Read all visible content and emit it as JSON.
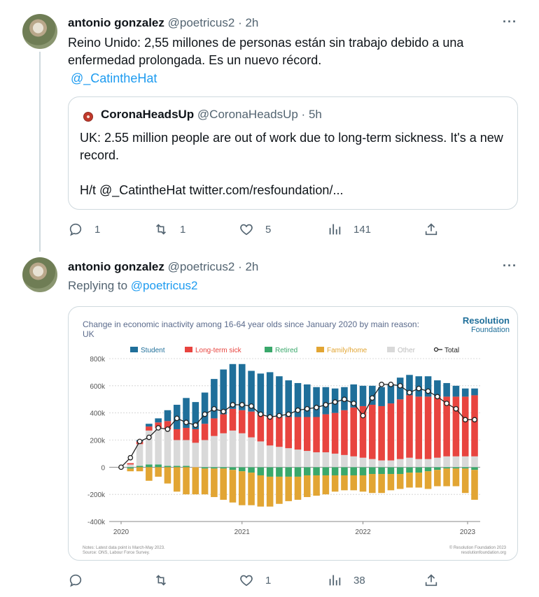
{
  "tweet1": {
    "name": "antonio gonzalez",
    "handle": "@poetricus2",
    "dot": "·",
    "time": "2h",
    "more": "···",
    "text": "Reino Unido: 2,55 millones de personas están sin trabajo debido a una enfermedad prolongada. Es un nuevo récord.",
    "mention": "@_CatintheHat",
    "quote": {
      "name": "CoronaHeadsUp",
      "handle": "@CoronaHeadsUp",
      "dot": "·",
      "time": "5h",
      "line1": "UK: 2.55 million people are out of work due to long-term sickness. It's a new record.",
      "line2": "H/t @_CatintheHat twitter.com/resfoundation/..."
    },
    "actions": {
      "replies": "1",
      "retweets": "1",
      "likes": "5",
      "views": "141"
    }
  },
  "tweet2": {
    "name": "antonio gonzalez",
    "handle": "@poetricus2",
    "dot": "·",
    "time": "2h",
    "more": "···",
    "replying_label": "Replying to ",
    "replying_handle": "@poetricus2",
    "actions": {
      "replies": "",
      "retweets": "",
      "likes": "1",
      "views": "38"
    }
  },
  "colors": {
    "student": "#1f6f9a",
    "longterm": "#e8443f",
    "retired": "#3aa86b",
    "family": "#e2a533",
    "other": "#d9d9d9",
    "total": "#222222",
    "accent": "#1d9bf0"
  },
  "chart_data": {
    "type": "bar",
    "title": "Change in economic inactivity among 16-64 year olds since January 2020 by main reason: UK",
    "brand": "Resolution",
    "brand_sub": "Foundation",
    "legend": [
      "Student",
      "Long-term sick",
      "Retired",
      "Family/home",
      "Other",
      "Total"
    ],
    "legend_position": "top",
    "ylim": [
      -400000,
      800000
    ],
    "y_ticks": [
      "800k",
      "600k",
      "400k",
      "200k",
      "0",
      "-200k",
      "-400k"
    ],
    "x_ticks": [
      "2020",
      "2021",
      "2022",
      "2023"
    ],
    "grid": true,
    "note1": "Notes: Latest data point is March-May 2023.",
    "note2": "Source: ONS, Labour Force Survey.",
    "credit1": "© Resolution Foundation 2023",
    "credit2": "resolutionfoundation.org",
    "series": [
      {
        "name": "Other",
        "values": [
          0,
          20,
          160,
          250,
          270,
          270,
          190,
          190,
          180,
          200,
          230,
          250,
          270,
          250,
          220,
          190,
          160,
          150,
          140,
          130,
          120,
          110,
          110,
          100,
          90,
          80,
          70,
          60,
          50,
          50,
          60,
          70,
          60,
          60,
          70,
          80,
          80,
          80,
          80
        ]
      },
      {
        "name": "Retired",
        "values": [
          0,
          -10,
          10,
          20,
          20,
          10,
          10,
          10,
          0,
          -10,
          -10,
          -10,
          -20,
          -30,
          -40,
          -60,
          -70,
          -70,
          -70,
          -70,
          -60,
          -60,
          -60,
          -60,
          -60,
          -60,
          -60,
          -50,
          -50,
          -50,
          -50,
          -40,
          -40,
          -30,
          -20,
          -10,
          -10,
          -10,
          -20
        ]
      },
      {
        "name": "Long-term sick",
        "values": [
          0,
          10,
          20,
          30,
          40,
          60,
          80,
          90,
          100,
          120,
          130,
          140,
          160,
          170,
          190,
          200,
          210,
          220,
          230,
          240,
          250,
          260,
          280,
          300,
          330,
          360,
          380,
          400,
          400,
          420,
          440,
          460,
          460,
          460,
          450,
          440,
          440,
          440,
          450
        ]
      },
      {
        "name": "Student",
        "values": [
          0,
          0,
          10,
          20,
          30,
          80,
          180,
          220,
          200,
          230,
          290,
          330,
          330,
          340,
          300,
          300,
          330,
          300,
          270,
          250,
          240,
          220,
          200,
          180,
          170,
          170,
          150,
          140,
          140,
          140,
          160,
          150,
          150,
          150,
          120,
          100,
          80,
          60,
          50
        ]
      },
      {
        "name": "Family/home",
        "values": [
          0,
          -20,
          -30,
          -100,
          -70,
          -120,
          -180,
          -200,
          -200,
          -190,
          -210,
          -230,
          -240,
          -250,
          -240,
          -230,
          -220,
          -200,
          -180,
          -170,
          -160,
          -150,
          -140,
          -120,
          -110,
          -110,
          -120,
          -140,
          -140,
          -120,
          -110,
          -110,
          -110,
          -130,
          -120,
          -130,
          -130,
          -180,
          -220
        ]
      },
      {
        "name": "Total",
        "values": [
          0,
          70,
          190,
          220,
          290,
          280,
          360,
          330,
          310,
          390,
          430,
          410,
          460,
          460,
          450,
          390,
          370,
          380,
          390,
          420,
          430,
          440,
          460,
          480,
          500,
          470,
          380,
          510,
          610,
          610,
          600,
          550,
          580,
          560,
          520,
          470,
          430,
          350,
          350
        ]
      }
    ]
  }
}
